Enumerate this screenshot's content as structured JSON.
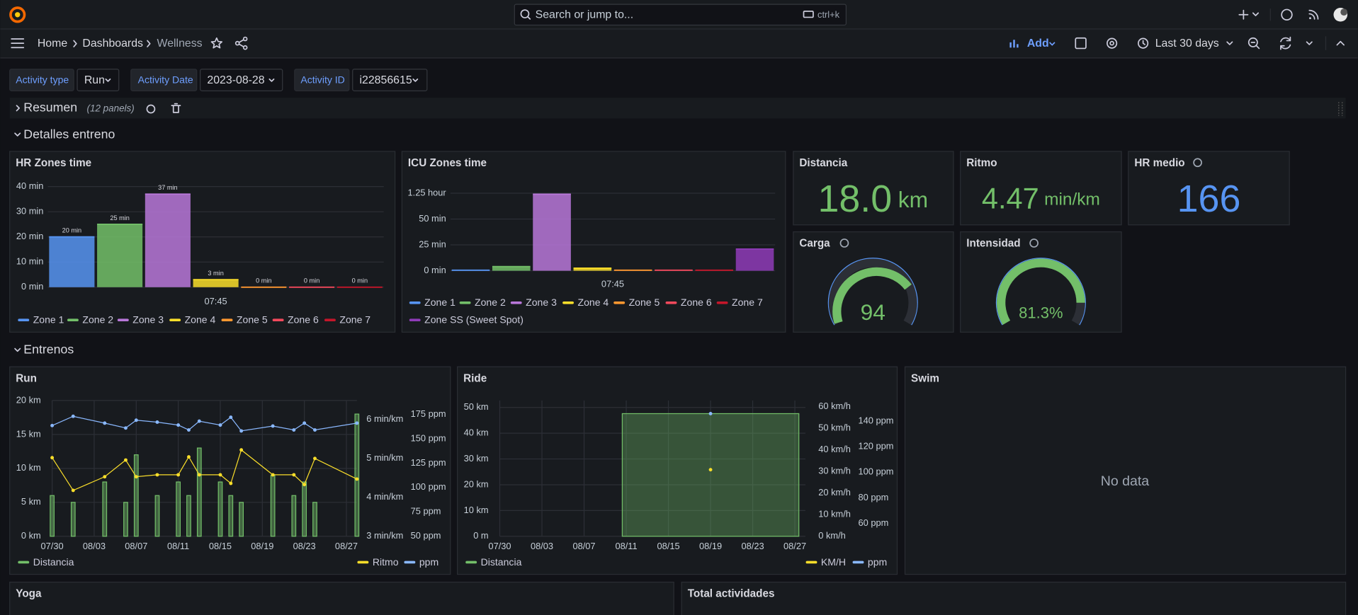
{
  "topbar": {
    "search": "Search or jump to...",
    "shortcut": "ctrl+k"
  },
  "breadcrumb": [
    "Home",
    "Dashboards",
    "Wellness"
  ],
  "toolbar": {
    "add": "Add",
    "time_range": "Last 30 days"
  },
  "variables": [
    {
      "label": "Activity type",
      "value": "Run"
    },
    {
      "label": "Activity Date",
      "value": "2023-08-28"
    },
    {
      "label": "Activity ID",
      "value": "i22856615"
    }
  ],
  "rows": {
    "resumen": {
      "title": "Resumen",
      "note": "(12 panels)"
    },
    "detalles": {
      "title": "Detalles entreno"
    },
    "entrenos": {
      "title": "Entrenos"
    }
  },
  "stats": [
    {
      "title": "Distancia",
      "value": "18.0",
      "unit": "km"
    },
    {
      "title": "Ritmo",
      "value": "4.47",
      "unit": "min/km"
    },
    {
      "title": "HR medio",
      "value": "166"
    }
  ],
  "gauges": [
    {
      "title": "Carga",
      "value": "94"
    },
    {
      "title": "Intensidad",
      "value": "81.3%"
    }
  ],
  "swim": {
    "title": "Swim",
    "message": "No data"
  },
  "yoga": {
    "title": "Yoga"
  },
  "total": {
    "title": "Total actividades"
  },
  "chart_data": [
    {
      "type": "bar",
      "title": "HR Zones time",
      "categories": [
        "07:45"
      ],
      "series": [
        {
          "name": "Zone 1",
          "color": "#5794f2",
          "values": [
            20
          ],
          "value_labels": [
            "20 min"
          ]
        },
        {
          "name": "Zone 2",
          "color": "#73bf69",
          "values": [
            25
          ],
          "value_labels": [
            "25 min"
          ]
        },
        {
          "name": "Zone 3",
          "color": "#b877d9",
          "values": [
            37
          ],
          "value_labels": [
            "37 min"
          ]
        },
        {
          "name": "Zone 4",
          "color": "#fade2a",
          "values": [
            3
          ],
          "value_labels": [
            "3 min"
          ]
        },
        {
          "name": "Zone 5",
          "color": "#ff9830",
          "values": [
            0
          ],
          "value_labels": [
            "0 min"
          ]
        },
        {
          "name": "Zone 6",
          "color": "#f2495c",
          "values": [
            0
          ],
          "value_labels": [
            "0 min"
          ]
        },
        {
          "name": "Zone 7",
          "color": "#c4162a",
          "values": [
            0
          ],
          "value_labels": [
            "0 min"
          ]
        }
      ],
      "ylim": [
        0,
        43
      ],
      "yticks": [
        {
          "value": 0,
          "label": "0 min"
        },
        {
          "value": 10,
          "label": "10 min"
        },
        {
          "value": 20,
          "label": "20 min"
        },
        {
          "value": 30,
          "label": "30 min"
        },
        {
          "value": 40,
          "label": "40 min"
        }
      ],
      "grid": true
    },
    {
      "type": "bar",
      "title": "ICU Zones time",
      "categories": [
        "07:45"
      ],
      "series": [
        {
          "name": "Zone 1",
          "color": "#5794f2",
          "values": [
            0.5
          ]
        },
        {
          "name": "Zone 2",
          "color": "#73bf69",
          "values": [
            4
          ]
        },
        {
          "name": "Zone 3",
          "color": "#b877d9",
          "values": [
            74
          ]
        },
        {
          "name": "Zone 4",
          "color": "#fade2a",
          "values": [
            2.5
          ]
        },
        {
          "name": "Zone 5",
          "color": "#ff9830",
          "values": [
            0.5
          ]
        },
        {
          "name": "Zone 6",
          "color": "#f2495c",
          "values": [
            0.5
          ]
        },
        {
          "name": "Zone 7",
          "color": "#c4162a",
          "values": [
            0.5
          ]
        },
        {
          "name": "Zone SS (Sweet Spot)",
          "color": "#8f3bb8",
          "values": [
            21
          ]
        }
      ],
      "ylim": [
        0,
        82
      ],
      "yticks": [
        {
          "value": 0,
          "label": "0 min"
        },
        {
          "value": 25,
          "label": "25 min"
        },
        {
          "value": 50,
          "label": "50 min"
        },
        {
          "value": 75,
          "label": "1.25 hour"
        }
      ],
      "grid": true
    },
    {
      "type": "combo",
      "title": "Run",
      "x": [
        "07/30",
        "08/01",
        "08/04",
        "08/06",
        "08/07",
        "08/09",
        "08/11",
        "08/12",
        "08/13",
        "08/15",
        "08/16",
        "08/17",
        "08/20",
        "08/22",
        "08/23",
        "08/24",
        "08/28"
      ],
      "xlim": [
        "07/30",
        "08/28"
      ],
      "xticks": [
        "07/30",
        "08/03",
        "08/07",
        "08/11",
        "08/15",
        "08/19",
        "08/23",
        "08/27"
      ],
      "series": [
        {
          "name": "Distancia",
          "type": "bar",
          "color": "#73bf69",
          "values": [
            6,
            5,
            8,
            5,
            12,
            6,
            8,
            6,
            13,
            8,
            6,
            5,
            9,
            6,
            8,
            5,
            18
          ]
        },
        {
          "name": "Ritmo",
          "type": "line",
          "color": "#fade2a",
          "axis": "y2",
          "values": [
            5.02,
            4.18,
            4.53,
            4.96,
            4.53,
            4.58,
            4.58,
            5.04,
            4.58,
            4.58,
            4.36,
            5.22,
            4.58,
            4.58,
            4.33,
            5.0,
            4.47
          ]
        },
        {
          "name": "ppm",
          "type": "line",
          "color": "#8ab8ff",
          "axis": "y3",
          "values": [
            163.5,
            173,
            166,
            161,
            169,
            167,
            164,
            159,
            168,
            164,
            172,
            158,
            163,
            159,
            166,
            159,
            166
          ]
        }
      ],
      "ylim": [
        0,
        20
      ],
      "yticks": [
        {
          "value": 0,
          "label": "0 km"
        },
        {
          "value": 5,
          "label": "5 km"
        },
        {
          "value": 10,
          "label": "10 km"
        },
        {
          "value": 15,
          "label": "15 km"
        },
        {
          "value": 20,
          "label": "20 km"
        }
      ],
      "y2lim": [
        3,
        6.49
      ],
      "y2ticks": [
        {
          "value": 3,
          "label": "3 min/km"
        },
        {
          "value": 4,
          "label": "4 min/km"
        },
        {
          "value": 5,
          "label": "5 min/km"
        },
        {
          "value": 6,
          "label": "6 min/km"
        }
      ],
      "y3lim": [
        50,
        189.2
      ],
      "y3ticks": [
        {
          "value": 50,
          "label": "50 ppm"
        },
        {
          "value": 75,
          "label": "75 ppm"
        },
        {
          "value": 100,
          "label": "100 ppm"
        },
        {
          "value": 125,
          "label": "125 ppm"
        },
        {
          "value": 150,
          "label": "150 ppm"
        },
        {
          "value": 175,
          "label": "175 ppm"
        }
      ],
      "grid": true
    },
    {
      "type": "combo",
      "title": "Ride",
      "x": [
        "08/19"
      ],
      "xlim": [
        "07/30",
        "08/28"
      ],
      "xticks": [
        "07/30",
        "08/03",
        "08/07",
        "08/11",
        "08/15",
        "08/19",
        "08/23",
        "08/27"
      ],
      "series": [
        {
          "name": "Distancia",
          "type": "bar",
          "color": "#73bf69",
          "values": [
            47.6
          ]
        },
        {
          "name": "KM/H",
          "type": "line",
          "color": "#fade2a",
          "axis": "y2",
          "values": [
            30.8
          ]
        },
        {
          "name": "ppm",
          "type": "line",
          "color": "#8ab8ff",
          "axis": "y3",
          "values": [
            146
          ]
        }
      ],
      "ylim": [
        0,
        52.7
      ],
      "yticks": [
        {
          "value": 0,
          "label": "0 m"
        },
        {
          "value": 10,
          "label": "10 km"
        },
        {
          "value": 20,
          "label": "20 km"
        },
        {
          "value": 30,
          "label": "30 km"
        },
        {
          "value": 40,
          "label": "40 km"
        },
        {
          "value": 50,
          "label": "50 km"
        }
      ],
      "y2lim": [
        0,
        62.8
      ],
      "y2ticks": [
        {
          "value": 0,
          "label": "0 km/h"
        },
        {
          "value": 10,
          "label": "10 km/h"
        },
        {
          "value": 20,
          "label": "20 km/h"
        },
        {
          "value": 30,
          "label": "30 km/h"
        },
        {
          "value": 40,
          "label": "40 km/h"
        },
        {
          "value": 50,
          "label": "50 km/h"
        },
        {
          "value": 60,
          "label": "60 km/h"
        }
      ],
      "y3lim": [
        49.8,
        156.3
      ],
      "y3ticks": [
        {
          "value": 60,
          "label": "60 ppm"
        },
        {
          "value": 80,
          "label": "80 ppm"
        },
        {
          "value": 100,
          "label": "100 ppm"
        },
        {
          "value": 120,
          "label": "120 ppm"
        },
        {
          "value": 140,
          "label": "140 ppm"
        }
      ],
      "grid": true
    }
  ]
}
